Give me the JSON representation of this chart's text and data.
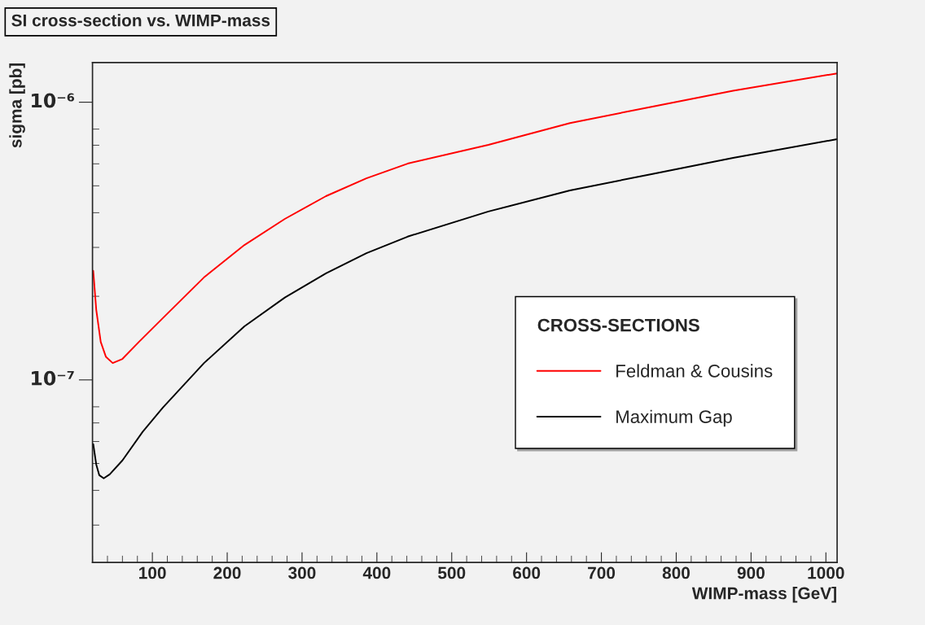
{
  "chart_data": {
    "type": "line",
    "title": "SI cross-section vs. WIMP-mass",
    "xlabel": "WIMP-mass [GeV]",
    "ylabel": "sigma [pb]",
    "legend_title": "CROSS-SECTIONS",
    "legend": "right",
    "grid": false,
    "log": "y",
    "marker": "none",
    "line_style": "solid",
    "xlim": [
      20,
      1015
    ],
    "xticks": [
      100,
      200,
      300,
      400,
      500,
      600,
      700,
      800,
      900,
      1000
    ],
    "ylim": [
      2.2e-08,
      1.39e-06
    ],
    "yticks": [
      {
        "value": 1e-07,
        "label": "10⁻⁷"
      },
      {
        "value": 1e-06,
        "label": "10⁻⁶"
      }
    ],
    "series": [
      {
        "name": "Feldman & Cousins",
        "color": "#ff0000",
        "x": [
          21,
          25,
          31,
          38,
          47,
          60,
          82,
          114,
          169,
          223,
          277,
          332,
          386,
          441,
          549,
          658,
          767,
          876,
          1015
        ],
        "values": [
          2.47e-07,
          1.79e-07,
          1.37e-07,
          1.21e-07,
          1.15e-07,
          1.19e-07,
          1.37e-07,
          1.67e-07,
          2.34e-07,
          3.06e-07,
          3.8e-07,
          4.59e-07,
          5.32e-07,
          6.01e-07,
          7.02e-07,
          8.41e-07,
          9.63e-07,
          1.1e-06,
          1.27e-06
        ]
      },
      {
        "name": "Maximum Gap",
        "color": "#000000",
        "x": [
          21,
          25,
          29,
          35,
          43,
          60,
          87,
          114,
          169,
          223,
          277,
          332,
          386,
          441,
          549,
          658,
          767,
          876,
          1015
        ],
        "values": [
          5.87e-08,
          4.96e-08,
          4.54e-08,
          4.42e-08,
          4.57e-08,
          5.13e-08,
          6.5e-08,
          7.95e-08,
          1.15e-07,
          1.56e-07,
          1.98e-07,
          2.42e-07,
          2.86e-07,
          3.28e-07,
          4.04e-07,
          4.81e-07,
          5.51e-07,
          6.3e-07,
          7.36e-07
        ]
      }
    ]
  }
}
